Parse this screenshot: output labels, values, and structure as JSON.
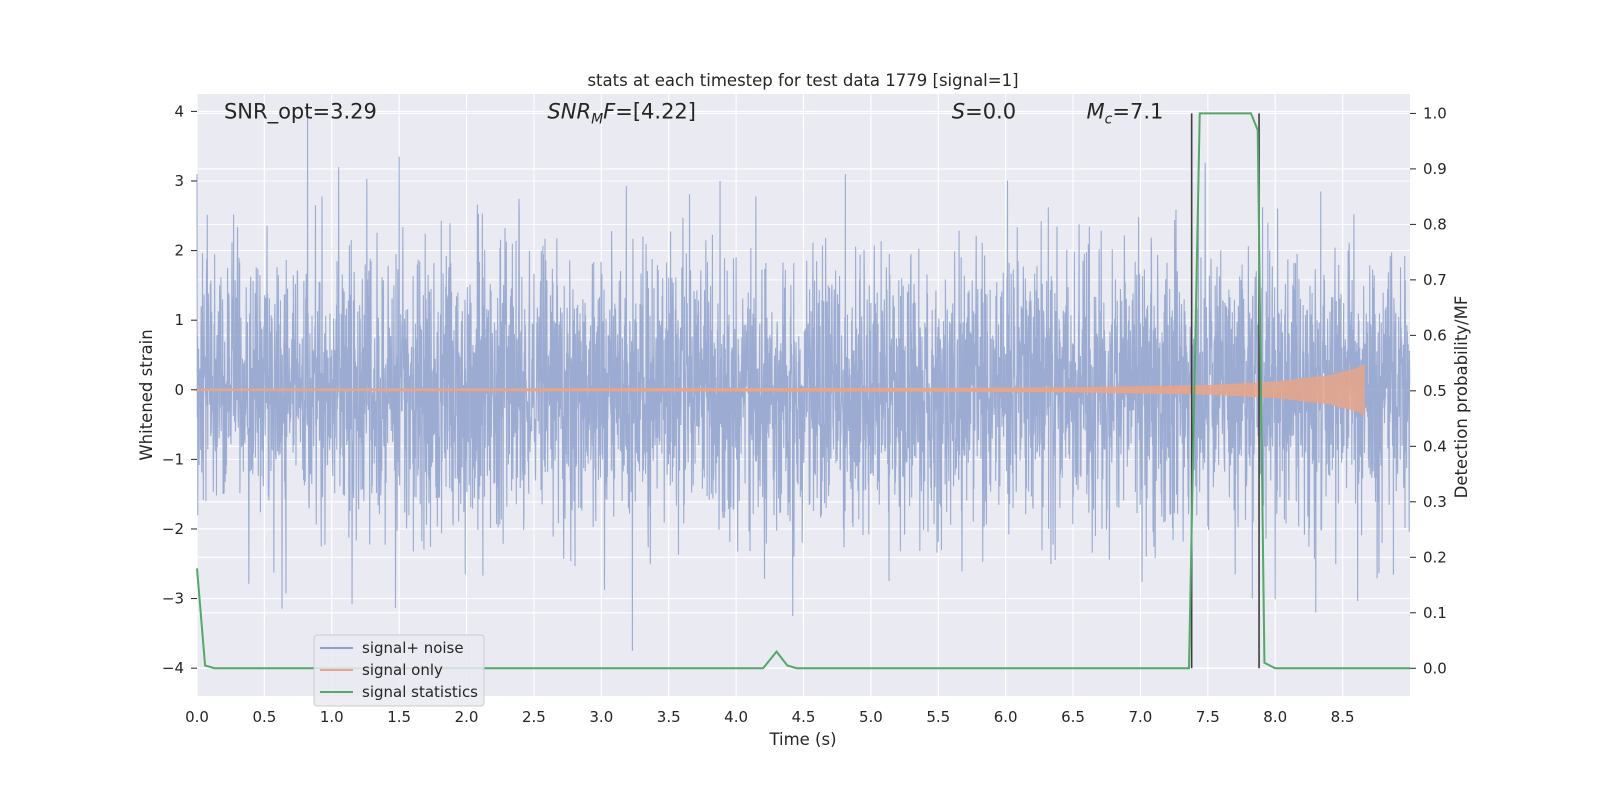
{
  "chart_data": {
    "type": "line",
    "title": "stats at each timestep for test data 1779 [signal=1]",
    "xlabel": "Time (s)",
    "ylabel_left": "Whitened strain",
    "ylabel_right": "Detection probability/MF",
    "xlim": [
      0,
      9.0
    ],
    "ylim_left": [
      -4.4,
      4.25
    ],
    "ylim_right": [
      -0.05,
      1.035
    ],
    "x_ticks": [
      "0.0",
      "0.5",
      "1.0",
      "1.5",
      "2.0",
      "2.5",
      "3.0",
      "3.5",
      "4.0",
      "4.5",
      "5.0",
      "5.5",
      "6.0",
      "6.5",
      "7.0",
      "7.5",
      "8.0",
      "8.5"
    ],
    "y_ticks_left": [
      "4",
      "3",
      "2",
      "1",
      "0",
      "−1",
      "−2",
      "−3",
      "−4"
    ],
    "y_ticks_right": [
      "1.0",
      "0.9",
      "0.8",
      "0.7",
      "0.6",
      "0.5",
      "0.4",
      "0.3",
      "0.2",
      "0.1",
      "0.0"
    ],
    "grid": true,
    "legend_position": "lower-left",
    "annotations": [
      {
        "id": "snr-opt",
        "text": "SNR_opt=3.29",
        "x": 0.2,
        "y": 3.9
      },
      {
        "id": "snr-mf",
        "text": "SNR_MF=[4.22]",
        "x": 2.6,
        "y": 3.9
      },
      {
        "id": "s-value",
        "text": "S=0.0",
        "x": 5.6,
        "y": 3.9
      },
      {
        "id": "mc-value",
        "text": "M_c=7.1",
        "x": 6.6,
        "y": 3.9
      }
    ],
    "series": [
      {
        "name": "signal+ noise",
        "axis": "left",
        "color": "#8da0cb",
        "style": "dense noise",
        "sample_rate_hz": 512,
        "approx_range": [
          -3.7,
          3.9
        ],
        "notable_peaks": [
          {
            "x": 0.0,
            "y": 3.1
          },
          {
            "x": 0.82,
            "y": 3.9
          },
          {
            "x": 1.05,
            "y": 3.2
          },
          {
            "x": 1.5,
            "y": 3.35
          },
          {
            "x": 3.23,
            "y": -3.75
          },
          {
            "x": 3.88,
            "y": 3.0
          },
          {
            "x": 4.81,
            "y": 3.1
          },
          {
            "x": 4.42,
            "y": -3.25
          },
          {
            "x": 7.43,
            "y": 3.2
          },
          {
            "x": 7.83,
            "y": -3.0
          },
          {
            "x": 8.3,
            "y": -3.2
          }
        ]
      },
      {
        "name": "signal only",
        "axis": "left",
        "color": "#e7a58a",
        "style": "chirp",
        "points": [
          {
            "t": 0.0,
            "amp": 0.01
          },
          {
            "t": 5.5,
            "amp": 0.02
          },
          {
            "t": 6.5,
            "amp": 0.03
          },
          {
            "t": 7.5,
            "amp": 0.06
          },
          {
            "t": 8.0,
            "amp": 0.11
          },
          {
            "t": 8.4,
            "amp": 0.2
          },
          {
            "t": 8.6,
            "amp": 0.3
          },
          {
            "t": 8.66,
            "amp": 0.36
          }
        ],
        "end_time": 8.66
      },
      {
        "name": "signal statistics",
        "axis": "right",
        "color": "#55a868",
        "x": [
          0.0,
          0.06,
          0.13,
          4.2,
          4.3,
          4.38,
          4.45,
          7.36,
          7.4,
          7.44,
          7.5,
          7.82,
          7.87,
          7.92,
          8.0,
          9.0
        ],
        "y": [
          0.18,
          0.005,
          0.0,
          0.0,
          0.03,
          0.005,
          0.0,
          0.0,
          0.5,
          1.0,
          1.0,
          1.0,
          0.97,
          0.01,
          0.0,
          0.0
        ]
      }
    ],
    "vertical_lines": [
      {
        "x": 7.38,
        "color": "#3d3d3d",
        "y_range_right": [
          0.0,
          1.0
        ]
      },
      {
        "x": 7.88,
        "color": "#3d3d3d",
        "y_range_right": [
          0.0,
          1.0
        ]
      }
    ]
  },
  "legend": {
    "items": [
      {
        "label": "signal+ noise",
        "color": "#8da0cb"
      },
      {
        "label": "signal only",
        "color": "#e7a58a"
      },
      {
        "label": "signal statistics",
        "color": "#55a868"
      }
    ]
  },
  "colors": {
    "axes_background": "#eaeaf2",
    "grid": "#ffffff",
    "text": "#262626"
  }
}
